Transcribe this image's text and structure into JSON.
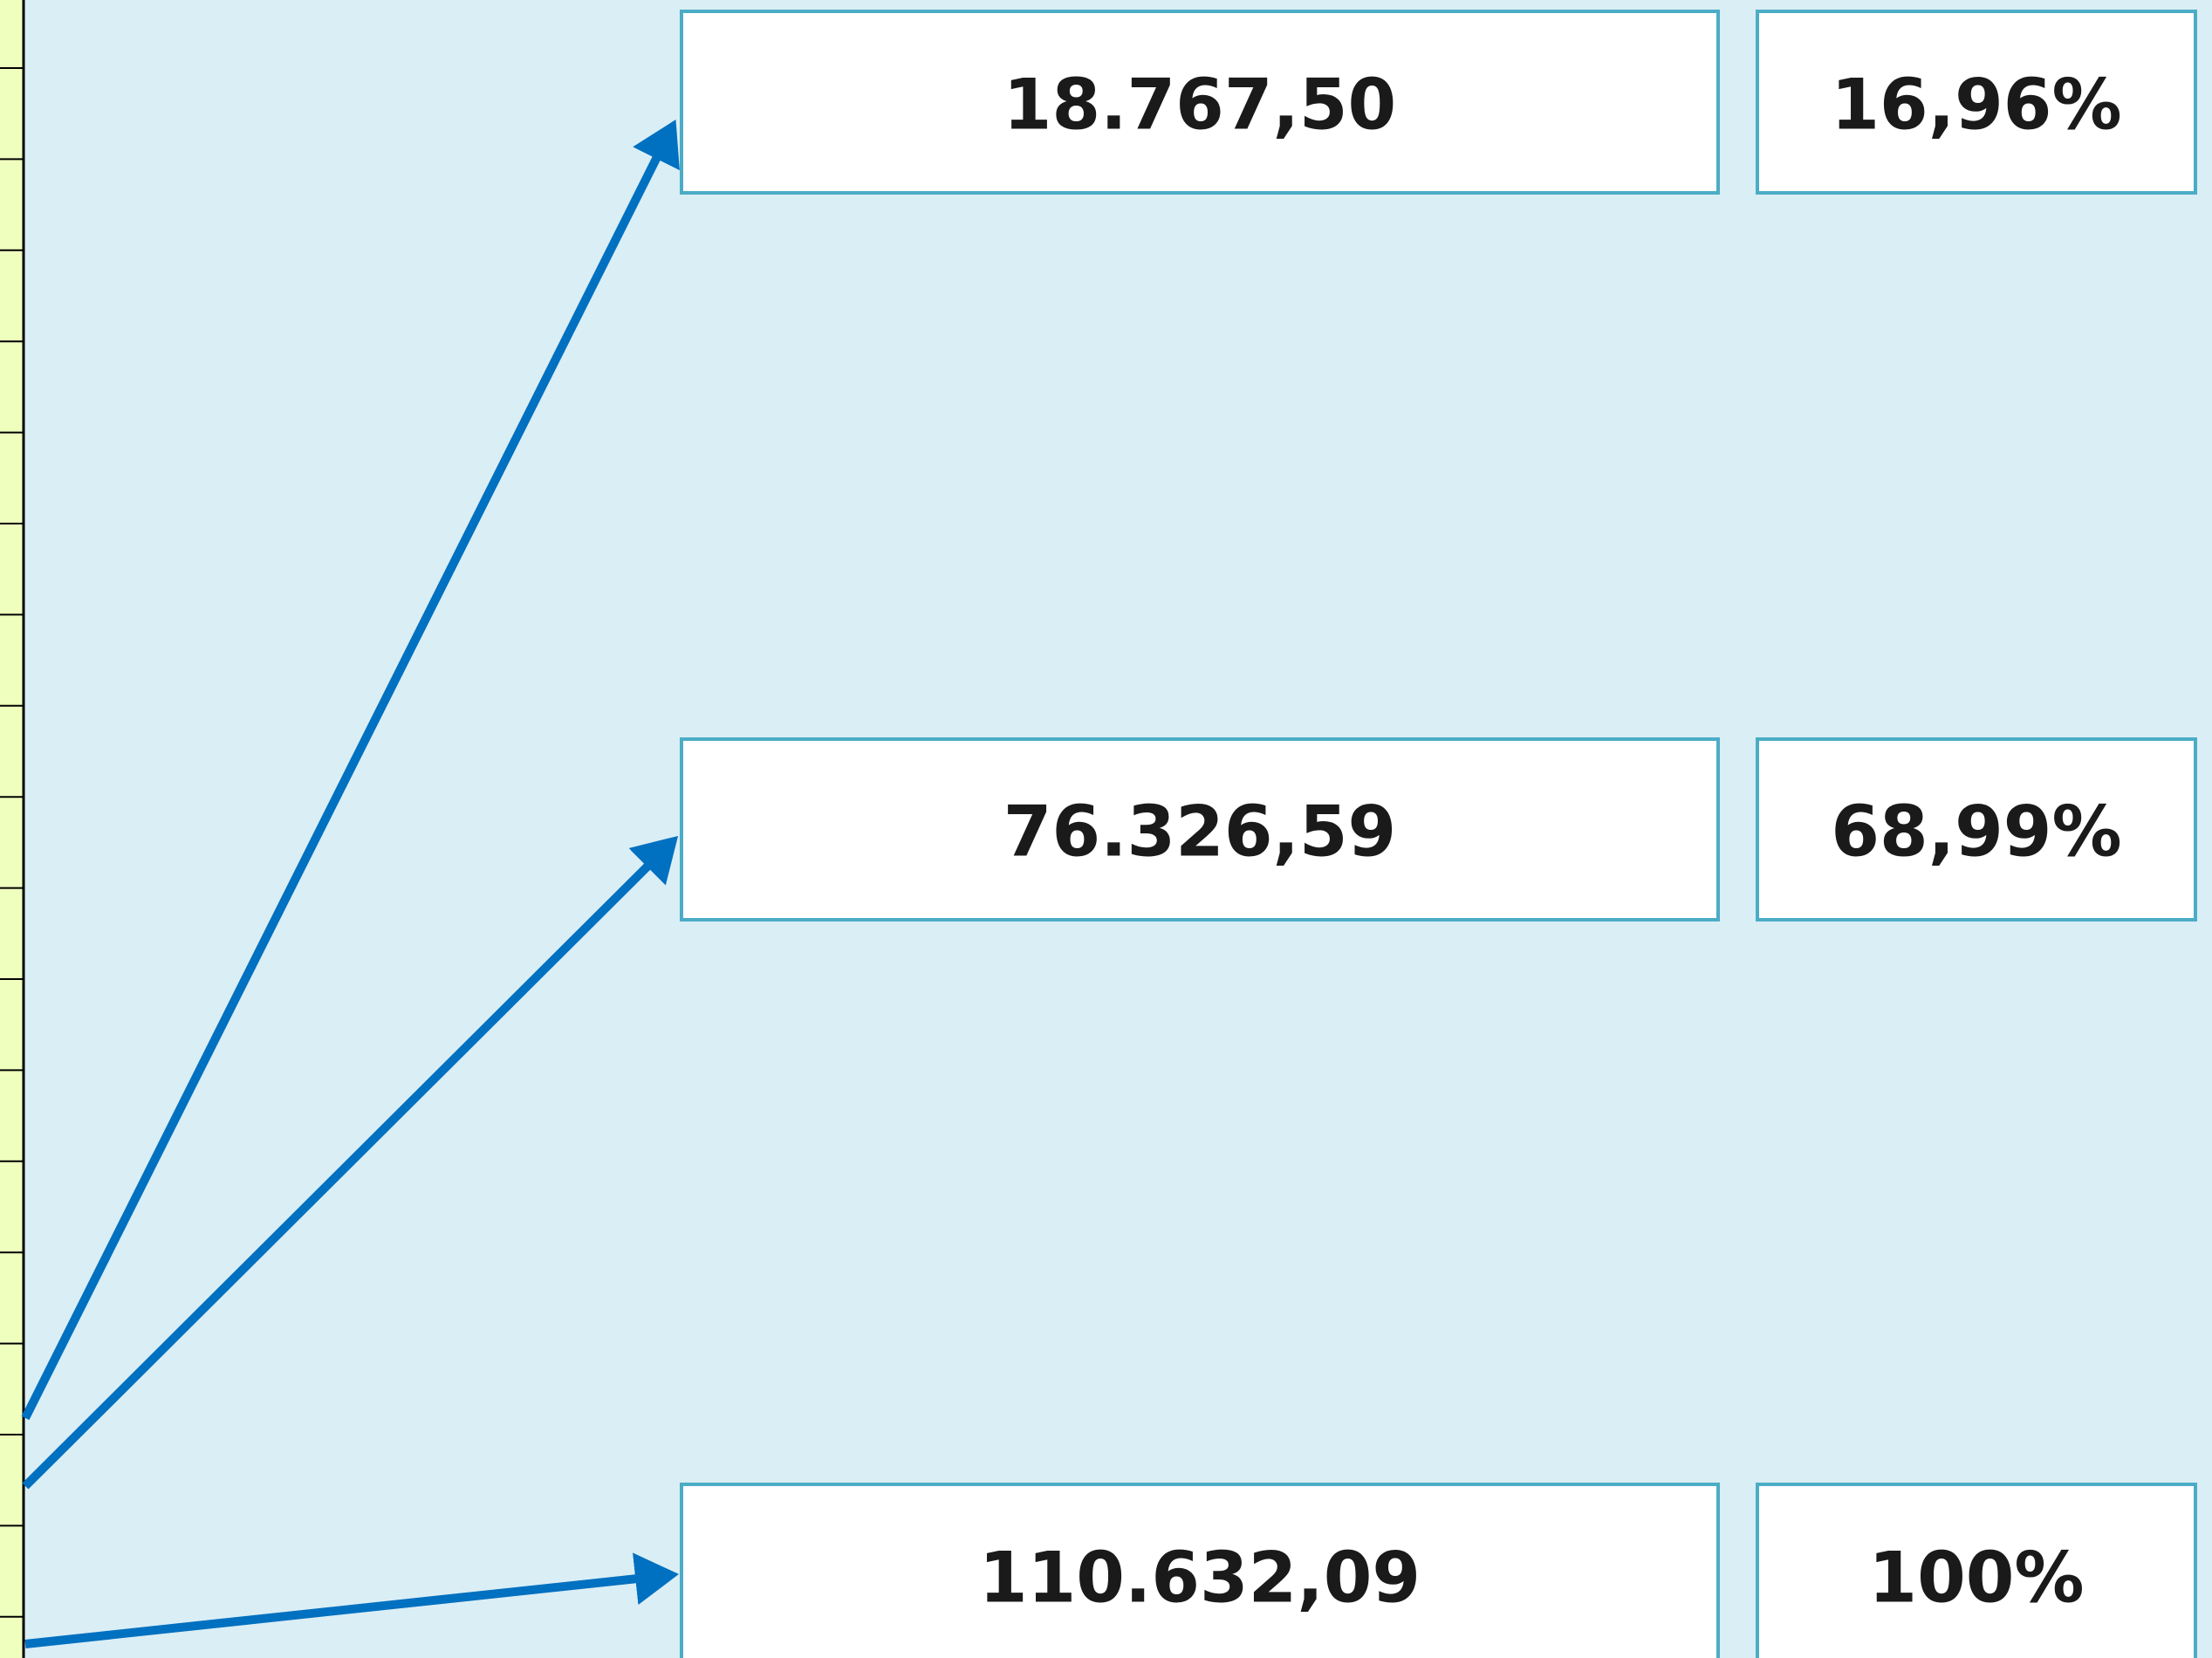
{
  "rows": [
    {
      "value": "18.767,50",
      "percent": "16,96%"
    },
    {
      "value": "76.326,59",
      "percent": "68,99%"
    },
    {
      "value": "110.632,09",
      "percent": "100%"
    }
  ]
}
